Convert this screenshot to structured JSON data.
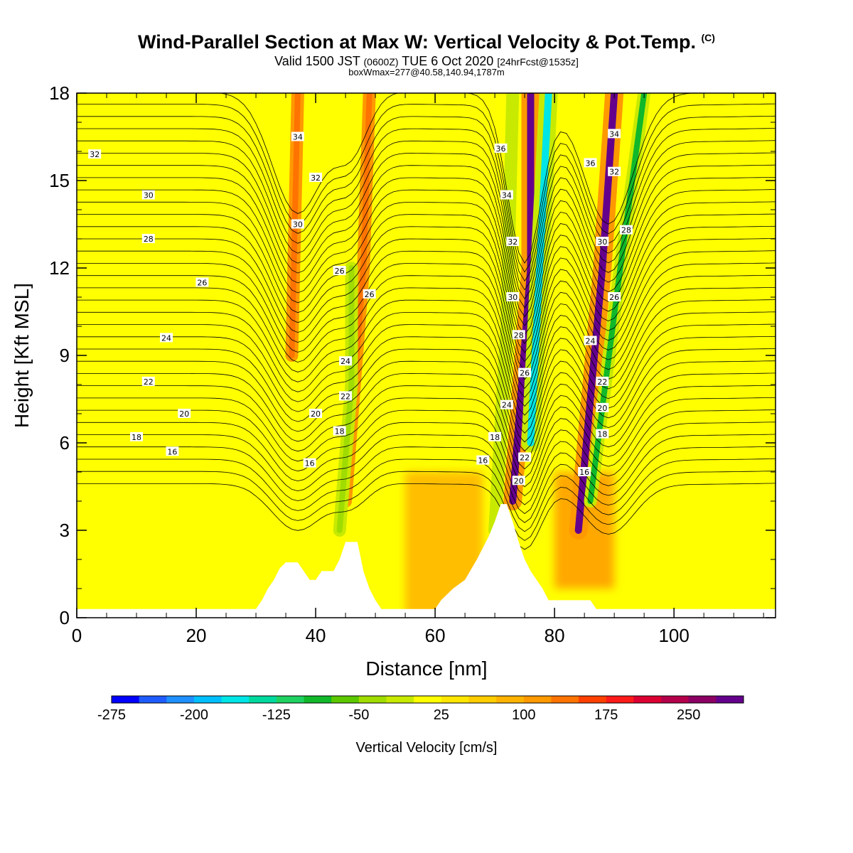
{
  "header": {
    "title": "Wind-Parallel Section at Max W: Vertical Velocity & Pot.Temp.",
    "title_tag": "(C)",
    "valid_prefix": "Valid 1500 JST",
    "valid_utc": "(0600Z)",
    "valid_date": "TUE 6 Oct 2020",
    "forecast": "[24hrFcst@1535z]",
    "box_info": "boxWmax=277@40.58,140.94,1787m"
  },
  "chart_data": {
    "type": "heatmap",
    "xlabel": "Distance [nm]",
    "ylabel": "Height [Kft MSL]",
    "xlim": [
      0,
      117
    ],
    "ylim": [
      0,
      18
    ],
    "x_ticks": [
      "0",
      "20",
      "40",
      "60",
      "80",
      "100"
    ],
    "y_ticks": [
      "0",
      "3",
      "6",
      "9",
      "12",
      "15",
      "18"
    ],
    "colorbar": {
      "label": "Vertical Velocity [cm/s]",
      "tick_labels": [
        "-275",
        "-200",
        "-125",
        "-50",
        "25",
        "100",
        "175",
        "250"
      ],
      "colors": [
        "#0000ff",
        "#1f5cff",
        "#1e90ff",
        "#00bfff",
        "#00e5e5",
        "#00d99e",
        "#1fd160",
        "#10b82a",
        "#5cc800",
        "#a0dc00",
        "#c8ea00",
        "#ffff00",
        "#ffe600",
        "#ffcc00",
        "#ffb300",
        "#ff9900",
        "#ff7300",
        "#ff4000",
        "#ff1a1a",
        "#dc0032",
        "#b4004b",
        "#8c0064",
        "#64008c"
      ]
    },
    "terrain_kft": [
      [
        0,
        0.3
      ],
      [
        30,
        0.3
      ],
      [
        31,
        0.6
      ],
      [
        32,
        1.0
      ],
      [
        33,
        1.3
      ],
      [
        34,
        1.7
      ],
      [
        35,
        1.9
      ],
      [
        37,
        1.9
      ],
      [
        38,
        1.6
      ],
      [
        39,
        1.3
      ],
      [
        40,
        1.3
      ],
      [
        41,
        1.6
      ],
      [
        43,
        1.6
      ],
      [
        44,
        2.0
      ],
      [
        45,
        2.6
      ],
      [
        47,
        2.6
      ],
      [
        48,
        1.6
      ],
      [
        49,
        1.0
      ],
      [
        50,
        0.6
      ],
      [
        51,
        0.3
      ],
      [
        60,
        0.3
      ],
      [
        61,
        0.6
      ],
      [
        63,
        1.0
      ],
      [
        65,
        1.3
      ],
      [
        67,
        2.0
      ],
      [
        69,
        2.8
      ],
      [
        70,
        3.3
      ],
      [
        71,
        3.9
      ],
      [
        72,
        3.9
      ],
      [
        73,
        3.3
      ],
      [
        74,
        2.6
      ],
      [
        75,
        2.0
      ],
      [
        76,
        1.6
      ],
      [
        77,
        1.3
      ],
      [
        78,
        1.0
      ],
      [
        79,
        0.6
      ],
      [
        80,
        0.6
      ],
      [
        82,
        0.6
      ],
      [
        86,
        0.6
      ],
      [
        87,
        0.3
      ],
      [
        117,
        0.3
      ]
    ],
    "vertical_velocity_features": [
      {
        "kind": "updraft",
        "value": 250,
        "path": [
          [
            73,
            4
          ],
          [
            76,
            12
          ],
          [
            76,
            18
          ]
        ]
      },
      {
        "kind": "updraft",
        "value": 250,
        "path": [
          [
            84,
            3
          ],
          [
            88,
            12
          ],
          [
            90,
            18
          ]
        ]
      },
      {
        "kind": "updraft",
        "value": 100,
        "path": [
          [
            45,
            4
          ],
          [
            48,
            12
          ],
          [
            49,
            18
          ]
        ]
      },
      {
        "kind": "updraft",
        "value": 100,
        "path": [
          [
            36,
            9
          ],
          [
            37,
            18
          ]
        ]
      },
      {
        "kind": "downdraft",
        "value": -200,
        "path": [
          [
            76,
            6
          ],
          [
            78,
            14
          ],
          [
            79,
            18
          ]
        ]
      },
      {
        "kind": "downdraft",
        "value": -125,
        "path": [
          [
            86,
            4
          ],
          [
            91,
            12
          ],
          [
            95,
            18
          ]
        ]
      },
      {
        "kind": "downdraft",
        "value": -75,
        "path": [
          [
            44,
            3
          ],
          [
            46,
            8
          ],
          [
            46,
            12
          ]
        ]
      },
      {
        "kind": "downdraft",
        "value": -50,
        "path": [
          [
            70,
            3
          ],
          [
            72,
            10
          ],
          [
            73,
            18
          ]
        ]
      }
    ],
    "potential_temperature_labels": [
      {
        "text": "32",
        "x": 3,
        "y": 15.9
      },
      {
        "text": "30",
        "x": 12,
        "y": 14.5
      },
      {
        "text": "28",
        "x": 12,
        "y": 13.0
      },
      {
        "text": "26",
        "x": 21,
        "y": 11.5
      },
      {
        "text": "24",
        "x": 15,
        "y": 9.6
      },
      {
        "text": "22",
        "x": 12,
        "y": 8.1
      },
      {
        "text": "20",
        "x": 18,
        "y": 7.0
      },
      {
        "text": "18",
        "x": 10,
        "y": 6.2
      },
      {
        "text": "16",
        "x": 16,
        "y": 5.7
      },
      {
        "text": "34",
        "x": 37,
        "y": 16.5
      },
      {
        "text": "32",
        "x": 40,
        "y": 15.1
      },
      {
        "text": "30",
        "x": 37,
        "y": 13.5
      },
      {
        "text": "26",
        "x": 44,
        "y": 11.9
      },
      {
        "text": "26",
        "x": 49,
        "y": 11.1
      },
      {
        "text": "24",
        "x": 45,
        "y": 8.8
      },
      {
        "text": "22",
        "x": 45,
        "y": 7.6
      },
      {
        "text": "20",
        "x": 40,
        "y": 7.0
      },
      {
        "text": "18",
        "x": 44,
        "y": 6.4
      },
      {
        "text": "16",
        "x": 39,
        "y": 5.3
      },
      {
        "text": "36",
        "x": 71,
        "y": 16.1
      },
      {
        "text": "34",
        "x": 72,
        "y": 14.5
      },
      {
        "text": "32",
        "x": 73,
        "y": 12.9
      },
      {
        "text": "30",
        "x": 73,
        "y": 11.0
      },
      {
        "text": "28",
        "x": 74,
        "y": 9.7
      },
      {
        "text": "26",
        "x": 75,
        "y": 8.4
      },
      {
        "text": "24",
        "x": 72,
        "y": 7.3
      },
      {
        "text": "18",
        "x": 70,
        "y": 6.2
      },
      {
        "text": "16",
        "x": 68,
        "y": 5.4
      },
      {
        "text": "22",
        "x": 75,
        "y": 5.5
      },
      {
        "text": "20",
        "x": 74,
        "y": 4.7
      },
      {
        "text": "36",
        "x": 86,
        "y": 15.6
      },
      {
        "text": "34",
        "x": 90,
        "y": 16.6
      },
      {
        "text": "32",
        "x": 90,
        "y": 15.3
      },
      {
        "text": "30",
        "x": 88,
        "y": 12.9
      },
      {
        "text": "28",
        "x": 92,
        "y": 13.3
      },
      {
        "text": "26",
        "x": 90,
        "y": 11.0
      },
      {
        "text": "24",
        "x": 86,
        "y": 9.5
      },
      {
        "text": "22",
        "x": 88,
        "y": 8.1
      },
      {
        "text": "20",
        "x": 88,
        "y": 7.2
      },
      {
        "text": "18",
        "x": 88,
        "y": 6.3
      },
      {
        "text": "16",
        "x": 85,
        "y": 5.0
      }
    ]
  }
}
